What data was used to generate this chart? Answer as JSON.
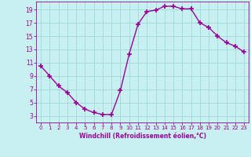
{
  "x": [
    0,
    1,
    2,
    3,
    4,
    5,
    6,
    7,
    8,
    9,
    10,
    11,
    12,
    13,
    14,
    15,
    16,
    17,
    18,
    19,
    20,
    21,
    22,
    23
  ],
  "y": [
    10.5,
    9.0,
    7.5,
    6.5,
    5.0,
    4.0,
    3.5,
    3.2,
    3.2,
    6.8,
    12.3,
    16.8,
    18.7,
    18.9,
    19.5,
    19.5,
    19.1,
    19.1,
    17.0,
    16.3,
    15.0,
    14.0,
    13.5,
    12.6
  ],
  "line_color": "#990099",
  "marker": "+",
  "markersize": 4,
  "linewidth": 1.0,
  "bg_color": "#c8f0f0",
  "grid_color": "#a0d8d8",
  "xlabel": "Windchill (Refroidissement éolien,°C)",
  "xlabel_color": "#990099",
  "tick_color": "#990099",
  "xlim": [
    -0.5,
    23.5
  ],
  "ylim": [
    2.0,
    20.2
  ],
  "yticks": [
    3,
    5,
    7,
    9,
    11,
    13,
    15,
    17,
    19
  ],
  "xticks": [
    0,
    1,
    2,
    3,
    4,
    5,
    6,
    7,
    8,
    9,
    10,
    11,
    12,
    13,
    14,
    15,
    16,
    17,
    18,
    19,
    20,
    21,
    22,
    23
  ]
}
